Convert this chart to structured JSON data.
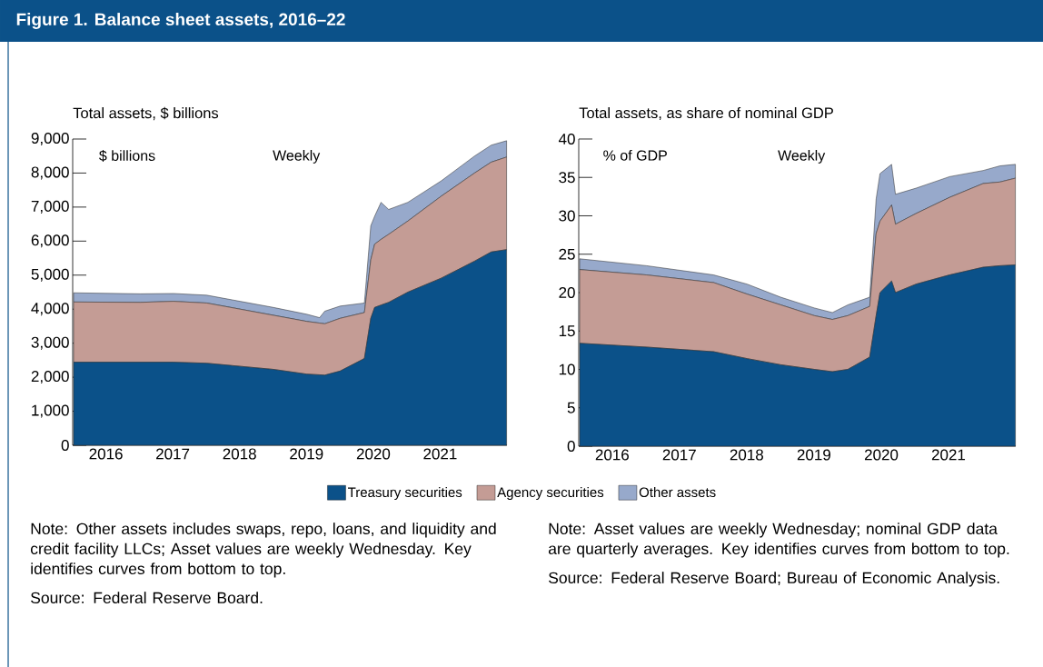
{
  "chart_data": [
    {
      "type": "area",
      "title": "Figure 1. Balance sheet assets, 2016–22",
      "subtitle": "Total assets, $ billions",
      "stacked": true,
      "legend": "bottom",
      "x": [
        "2016-01-06",
        "2017-01-04",
        "2017-07-05",
        "2018-01-03",
        "2018-07-04",
        "2019-01-02",
        "2019-07-03",
        "2019-09-11",
        "2019-10-09",
        "2020-01-01",
        "2020-05-13",
        "2020-06-17",
        "2020-07-08",
        "2020-08-12",
        "2020-09-23",
        "2021-01-06",
        "2021-07-07",
        "2022-01-05",
        "2022-04-06",
        "2022-06-29"
      ],
      "series": [
        {
          "name": "Treasury securities",
          "color": "#0b5189",
          "values": [
            2440,
            2440,
            2440,
            2410,
            2320,
            2230,
            2090,
            2070,
            2060,
            2180,
            2550,
            3730,
            4050,
            4120,
            4200,
            4500,
            4910,
            5410,
            5680,
            5750
          ]
        },
        {
          "name": "Agency securities",
          "color": "#c49c95",
          "values": [
            1770,
            1760,
            1790,
            1770,
            1680,
            1590,
            1550,
            1520,
            1510,
            1550,
            1350,
            1720,
            1860,
            1930,
            2000,
            2090,
            2410,
            2590,
            2640,
            2720
          ]
        },
        {
          "name": "Other assets",
          "color": "#97a9cb",
          "values": [
            270,
            250,
            230,
            230,
            230,
            230,
            210,
            160,
            370,
            360,
            280,
            1000,
            820,
            1090,
            730,
            550,
            450,
            500,
            500,
            480
          ]
        }
      ],
      "xlim": [
        "2016-01-01",
        "2022-07-01"
      ],
      "xticks": [
        {
          "value": "2017-01-01",
          "label": null
        },
        {
          "value": "2018-01-01",
          "label": null
        },
        {
          "value": "2019-01-01",
          "label": null
        },
        {
          "value": "2020-01-01",
          "label": null
        },
        {
          "value": "2021-01-01",
          "label": null
        },
        {
          "value": "2022-01-01",
          "label": null
        },
        {
          "value": "2016-07-01",
          "label": "2016"
        },
        {
          "value": "2017-07-01",
          "label": "2017"
        },
        {
          "value": "2018-07-01",
          "label": "2018"
        },
        {
          "value": "2019-07-01",
          "label": "2019"
        },
        {
          "value": "2020-07-01",
          "label": "2020"
        },
        {
          "value": "2021-07-01",
          "label": "2021"
        }
      ],
      "ylim": [
        0,
        9000
      ],
      "yticks": [
        {
          "value": 0,
          "label": "0"
        },
        {
          "value": 1000,
          "label": "1,000"
        },
        {
          "value": 2000,
          "label": "2,000"
        },
        {
          "value": 3000,
          "label": "3,000"
        },
        {
          "value": 4000,
          "label": "4,000"
        },
        {
          "value": 5000,
          "label": "5,000"
        },
        {
          "value": 6000,
          "label": "6,000"
        },
        {
          "value": 7000,
          "label": "7,000"
        },
        {
          "value": 8000,
          "label": "8,000"
        },
        {
          "value": 9000,
          "label": "9,000"
        }
      ],
      "annotations": [
        "$ billions",
        "Weekly",
        "Note: Other assets includes swaps, repo, loans, and liquidity and credit facility LLCs; Asset values are weekly Wednesday. Key identifies curves from bottom to top.",
        "Source: Federal Reserve Board."
      ]
    },
    {
      "type": "area",
      "subtitle": "Total assets, as share of nominal GDP",
      "stacked": true,
      "x": [
        "2016-01-06",
        "2017-01-04",
        "2018-01-03",
        "2018-07-04",
        "2019-01-02",
        "2019-07-03",
        "2019-10-09",
        "2020-01-01",
        "2020-04-29",
        "2020-06-03",
        "2020-06-24",
        "2020-08-26",
        "2020-09-16",
        "2021-01-06",
        "2021-07-07",
        "2022-01-05",
        "2022-04-06",
        "2022-06-29"
      ],
      "series": [
        {
          "color": "#0b5189",
          "values": [
            13.4,
            12.9,
            12.3,
            11.4,
            10.6,
            10.0,
            9.7,
            10.0,
            11.6,
            17.0,
            20.0,
            21.5,
            20.0,
            21.1,
            22.3,
            23.3,
            23.5,
            23.6
          ]
        },
        {
          "color": "#c49c95",
          "values": [
            9.6,
            9.4,
            9.0,
            8.4,
            7.8,
            7.0,
            6.8,
            7.0,
            6.6,
            10.7,
            9.3,
            9.9,
            8.9,
            9.2,
            10.1,
            10.9,
            10.9,
            11.3
          ]
        },
        {
          "color": "#97a9cb",
          "values": [
            1.4,
            1.2,
            1.0,
            1.3,
            1.0,
            1.0,
            0.9,
            1.4,
            1.2,
            4.5,
            6.2,
            5.3,
            3.9,
            3.3,
            2.7,
            1.7,
            2.1,
            1.8
          ]
        }
      ],
      "xlim": [
        "2016-01-01",
        "2022-07-01"
      ],
      "xticks": [
        {
          "value": "2017-01-01",
          "label": null
        },
        {
          "value": "2018-01-01",
          "label": null
        },
        {
          "value": "2019-01-01",
          "label": null
        },
        {
          "value": "2020-01-01",
          "label": null
        },
        {
          "value": "2021-01-01",
          "label": null
        },
        {
          "value": "2022-01-01",
          "label": null
        },
        {
          "value": "2016-07-01",
          "label": "2016"
        },
        {
          "value": "2017-07-01",
          "label": "2017"
        },
        {
          "value": "2018-07-01",
          "label": "2018"
        },
        {
          "value": "2019-07-01",
          "label": "2019"
        },
        {
          "value": "2020-07-01",
          "label": "2020"
        },
        {
          "value": "2021-07-01",
          "label": "2021"
        }
      ],
      "ylim": [
        0,
        40
      ],
      "yticks": [
        {
          "value": 0,
          "label": "0"
        },
        {
          "value": 5,
          "label": "5"
        },
        {
          "value": 10,
          "label": "10"
        },
        {
          "value": 15,
          "label": "15"
        },
        {
          "value": 20,
          "label": "20"
        },
        {
          "value": 25,
          "label": "25"
        },
        {
          "value": 30,
          "label": "30"
        },
        {
          "value": 35,
          "label": "35"
        },
        {
          "value": 40,
          "label": "40"
        }
      ],
      "annotations": [
        "% of GDP",
        "Weekly",
        "Note:  Asset values are weekly Wednesday; nominal GDP data are quarterly averages. Key identifies curves from bottom to top.",
        "Source: Federal Reserve Board; Bureau of Economic Analysis."
      ]
    }
  ]
}
